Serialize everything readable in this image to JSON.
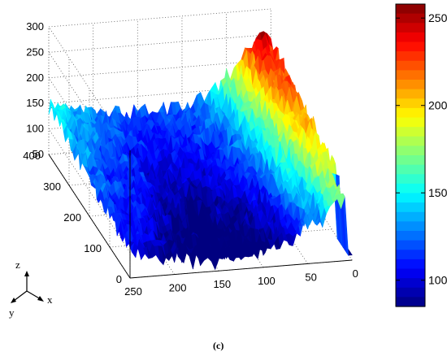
{
  "chart_data": {
    "type": "surface",
    "description_of_axes": {
      "x_ticks": [
        0,
        50,
        100,
        150,
        200,
        250
      ],
      "y_ticks": [
        0,
        100,
        200,
        300,
        400
      ],
      "z_ticks": [
        50,
        100,
        150,
        200,
        250,
        300
      ],
      "xlim": [
        0,
        250
      ],
      "ylim": [
        0,
        400
      ],
      "zlim": [
        50,
        300
      ]
    },
    "colorbar": {
      "colormap": "jet",
      "ticks": [
        100,
        150,
        200,
        250
      ],
      "range": [
        85,
        258
      ]
    },
    "surface_profile": {
      "x": [
        0,
        10,
        20,
        30,
        40,
        50,
        60,
        75,
        100,
        125,
        150,
        175,
        200,
        225,
        250
      ],
      "mean_z": [
        235,
        245,
        235,
        215,
        190,
        170,
        150,
        135,
        125,
        120,
        115,
        120,
        130,
        140,
        150
      ],
      "y_trend": "values decrease toward y=0",
      "noise_amplitude": 20
    },
    "orientation_axes": {
      "x": "x",
      "y": "y",
      "z": "z"
    },
    "caption": "(c)"
  }
}
